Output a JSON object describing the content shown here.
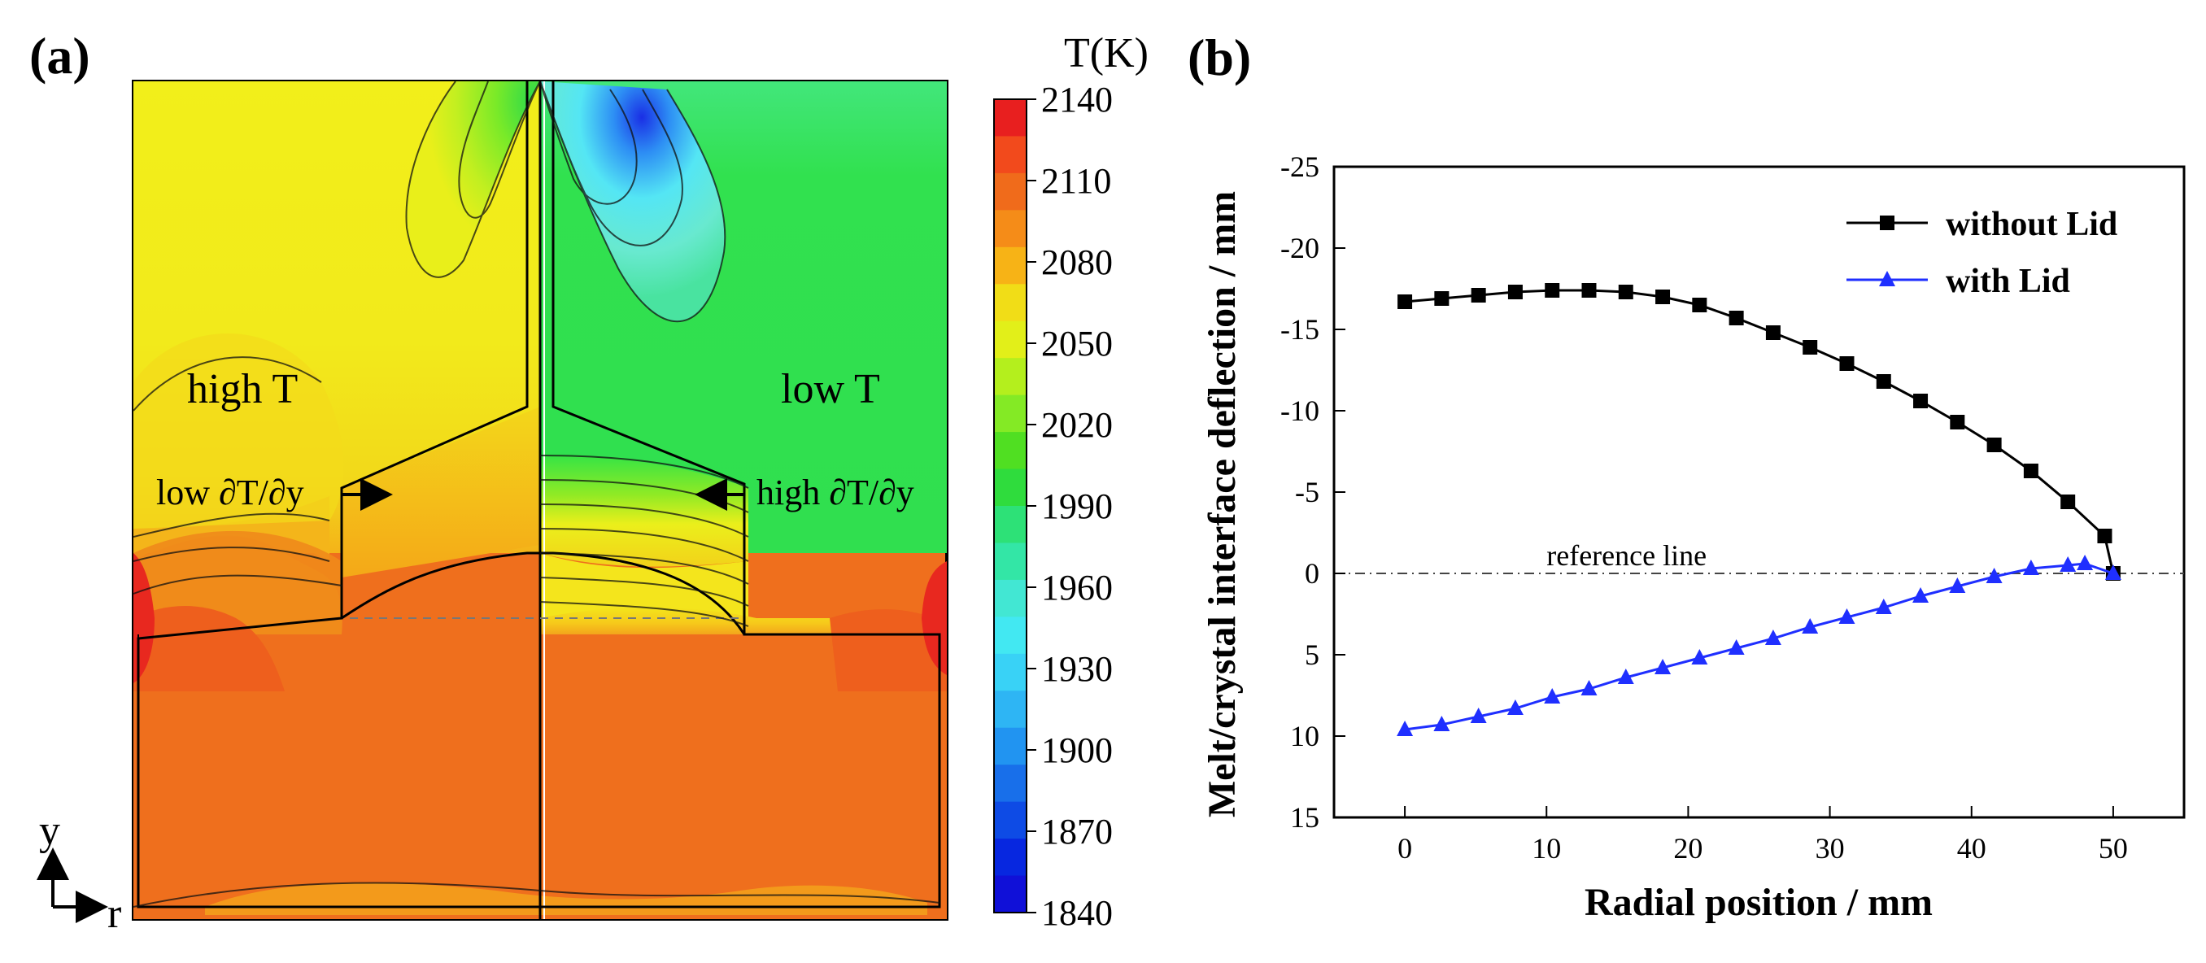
{
  "panels": {
    "a_label": "(a)",
    "b_label": "(b)"
  },
  "contour_plot": {
    "left_region_label": "high T",
    "right_region_label": "low T",
    "left_gradient_label": "low ∂T/∂y",
    "right_gradient_label": "high ∂T/∂y",
    "axis_y_label": "y",
    "axis_r_label": "r",
    "colors": {
      "hot_red": "#e8281f",
      "hot_orange": "#f06a1c",
      "warm_orange": "#f5a418",
      "yellow": "#f2e51a",
      "lime": "#c7ef24",
      "green": "#2fe05a",
      "cyan": "#4ce8d8",
      "blue": "#1f5fe8"
    }
  },
  "colorbar": {
    "title": "T(K)",
    "ticks": [
      2140,
      2110,
      2080,
      2050,
      2020,
      1990,
      1960,
      1930,
      1900,
      1870,
      1840
    ],
    "colors": [
      "#e81f1f",
      "#f24a1c",
      "#f06b1b",
      "#f58c18",
      "#f7b316",
      "#f1dd17",
      "#e2ef19",
      "#b4ef1d",
      "#84ea25",
      "#50df22",
      "#2fdc3d",
      "#2de177",
      "#33e6a6",
      "#42e7d3",
      "#42e8f2",
      "#39d2f6",
      "#2eb5f4",
      "#2194f1",
      "#186fea",
      "#0e4be5",
      "#0727e0",
      "#1010d8"
    ]
  },
  "chart_data": {
    "type": "line",
    "title": "",
    "xlabel": "Radial position / mm",
    "ylabel": "Melt/crystal interface deflection / mm",
    "xlim": [
      -5,
      55
    ],
    "ylim": [
      15,
      -25
    ],
    "x_ticks": [
      0,
      10,
      20,
      30,
      40,
      50
    ],
    "y_ticks": [
      -25,
      -20,
      -15,
      -10,
      -5,
      0,
      5,
      10,
      15
    ],
    "y_tick_labels": [
      "-25",
      "-20",
      "-15",
      "-10",
      "-5",
      "0",
      "5",
      "10",
      "15"
    ],
    "reference_line": {
      "label": "reference line",
      "y": 0
    },
    "legend": "top-right",
    "series": [
      {
        "name": "without Lid",
        "color": "#000000",
        "marker": "square",
        "x": [
          0,
          2.6,
          5.2,
          7.8,
          10.4,
          13.0,
          15.6,
          18.2,
          20.8,
          23.4,
          26.0,
          28.6,
          31.2,
          33.8,
          36.4,
          39.0,
          41.6,
          44.2,
          46.8,
          49.4,
          50
        ],
        "y": [
          -16.7,
          -16.9,
          -17.1,
          -17.3,
          -17.4,
          -17.4,
          -17.3,
          -17.0,
          -16.5,
          -15.7,
          -14.8,
          -13.9,
          -12.9,
          -11.8,
          -10.6,
          -9.3,
          -7.9,
          -6.3,
          -4.4,
          -2.3,
          0
        ]
      },
      {
        "name": "with Lid",
        "color": "#1f2fff",
        "marker": "triangle",
        "x": [
          0,
          2.6,
          5.2,
          7.8,
          10.4,
          13.0,
          15.6,
          18.2,
          20.8,
          23.4,
          26.0,
          28.6,
          31.2,
          33.8,
          36.4,
          39.0,
          41.6,
          44.2,
          46.8,
          48.0,
          50
        ],
        "y": [
          9.6,
          9.3,
          8.8,
          8.3,
          7.6,
          7.1,
          6.4,
          5.8,
          5.2,
          4.6,
          4.0,
          3.3,
          2.7,
          2.1,
          1.4,
          0.8,
          0.2,
          -0.3,
          -0.5,
          -0.6,
          0
        ]
      }
    ]
  }
}
